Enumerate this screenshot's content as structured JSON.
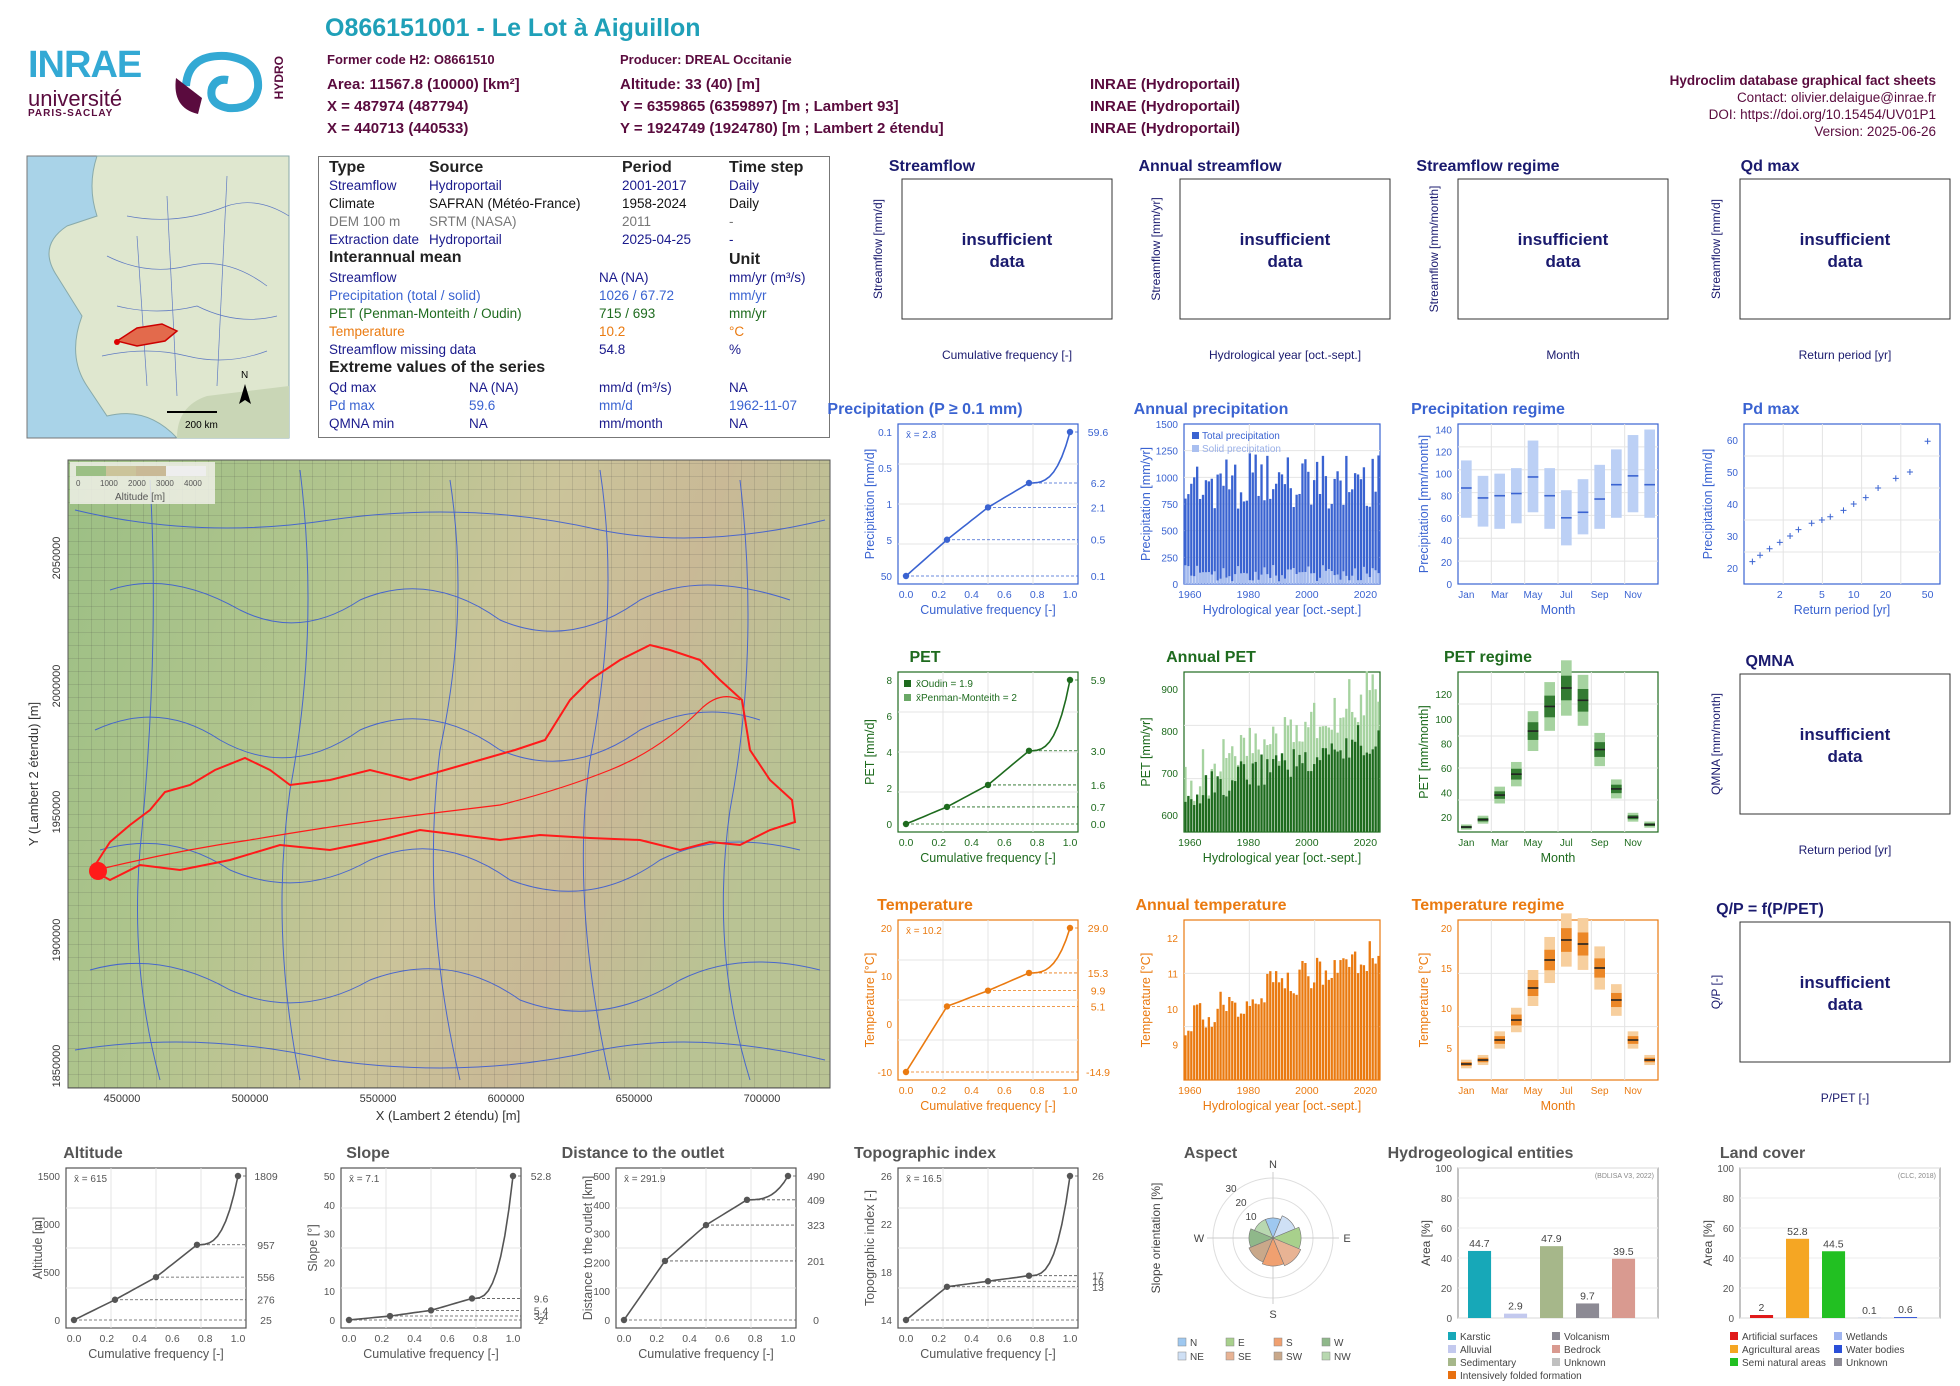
{
  "header": {
    "title": "O866151001 - Le Lot à Aiguillon",
    "former_code": "Former code H2: O8661510",
    "producer": "Producer: DREAL Occitanie",
    "area": "Area: 11567.8 (10000) [km²]",
    "altitude": "Altitude: 33 (40) [m]",
    "x_l93": "X = 487974 (487794)",
    "y_l93": "Y = 6359865 (6359897) [m ; Lambert 93]",
    "x_l2": "X = 440713 (440533)",
    "y_l2": "Y = 1924749 (1924780) [m ; Lambert 2 étendu]",
    "source_1": "INRAE (Hydroportail)",
    "source_2": "INRAE (Hydroportail)",
    "source_3": "INRAE (Hydroportail)"
  },
  "right_info": {
    "database": "Hydroclim database graphical fact sheets",
    "contact": "Contact: olivier.delaigue@inrae.fr",
    "doi": "DOI: https://doi.org/10.15454/UV01P1",
    "version": "Version: 2025-06-26"
  },
  "logo": {
    "inrae": "INRAE",
    "universite": "université",
    "paris_saclay": "PARIS-SACLAY",
    "hydro": "HYDRO"
  },
  "minimap": {
    "scale": "200 km",
    "north": "N"
  },
  "info_table": {
    "headers": [
      "Type",
      "Source",
      "Period",
      "Time step"
    ],
    "rows": [
      {
        "type": "Streamflow",
        "source": "Hydroportail",
        "period": "2001-2017",
        "step": "Daily",
        "color": "#1a1a8c"
      },
      {
        "type": "Climate",
        "source": "SAFRAN (Météo-France)",
        "period": "1958-2024",
        "step": "Daily",
        "color": "#111111"
      },
      {
        "type": "DEM 100 m",
        "source": "SRTM (NASA)",
        "period": "2011",
        "step": "-",
        "color": "#777777"
      },
      {
        "type": "Extraction date",
        "source": "Hydroportail",
        "period": "2025-04-25",
        "step": "-",
        "color": "#1a1a8c"
      }
    ],
    "mean_header": "Interannual mean",
    "unit_header": "Unit",
    "means": [
      {
        "name": "Streamflow",
        "value": "NA (NA)",
        "unit": "mm/yr (m³/s)",
        "color": "#1a1a8c"
      },
      {
        "name": "Precipitation (total / solid)",
        "value": "1026 / 67.72",
        "unit": "mm/yr",
        "color": "#3a63d1"
      },
      {
        "name": "PET (Penman-Monteith / Oudin)",
        "value": "715 / 693",
        "unit": "mm/yr",
        "color": "#1e6b1e"
      },
      {
        "name": "Temperature",
        "value": "10.2",
        "unit": "°C",
        "color": "#ea7a10"
      },
      {
        "name": "Streamflow missing data",
        "value": "54.8",
        "unit": "%",
        "color": "#1a1a8c"
      }
    ],
    "extreme_header": "Extreme values of the series",
    "extremes": [
      {
        "name": "Qd max",
        "v1": "NA (NA)",
        "unit": "mm/d (m³/s)",
        "date": "NA",
        "color": "#1a1a8c"
      },
      {
        "name": "Pd max",
        "v1": "59.6",
        "unit": "mm/d",
        "date": "1962-11-07",
        "color": "#3a63d1"
      },
      {
        "name": "QMNA min",
        "v1": "NA",
        "unit": "mm/month",
        "date": "NA",
        "color": "#1a1a8c"
      }
    ]
  },
  "map": {
    "x_label": "X (Lambert 2 étendu) [m]",
    "y_label": "Y (Lambert 2 étendu) [m]",
    "x_ticks": [
      "450000",
      "500000",
      "550000",
      "600000",
      "650000",
      "700000"
    ],
    "y_ticks": [
      "2050000",
      "2000000",
      "1950000",
      "1900000",
      "1850000"
    ],
    "legend_title": "Altitude [m]",
    "legend_ticks": [
      "0",
      "1000",
      "2000",
      "3000",
      "4000"
    ]
  },
  "insufficient_text": [
    "insufficient",
    "data"
  ],
  "panels": {
    "streamflow": {
      "title": "Streamflow",
      "ylabel": "Streamflow [mm/d]",
      "xlabel": "Cumulative frequency [-]"
    },
    "annual_streamflow": {
      "title": "Annual streamflow",
      "ylabel": "Streamflow [mm/yr]",
      "xlabel": "Hydrological year [oct.-sept.]"
    },
    "streamflow_regime": {
      "title": "Streamflow regime",
      "ylabel": "Streamflow [mm/month]",
      "xlabel": "Month"
    },
    "qd_max": {
      "title": "Qd max",
      "ylabel": "Streamflow [mm/d]",
      "xlabel": "Return period [yr]"
    },
    "precipitation": {
      "title": "Precipitation (P ≥ 0.1 mm)",
      "ylabel": "Precipitation [mm/d]",
      "xlabel": "Cumulative frequency [-]",
      "mean": "x̄ = 2.8"
    },
    "annual_precipitation": {
      "title": "Annual precipitation",
      "ylabel": "Precipitation [mm/yr]",
      "xlabel": "Hydrological year [oct.-sept.]",
      "legend": [
        "Total precipitation",
        "Solid precipitation"
      ]
    },
    "precipitation_regime": {
      "title": "Precipitation regime",
      "ylabel": "Precipitation [mm/month]",
      "xlabel": "Month"
    },
    "pd_max": {
      "title": "Pd max",
      "ylabel": "Precipitation [mm/d]",
      "xlabel": "Return period [yr]"
    },
    "pet": {
      "title": "PET",
      "ylabel": "PET [mm/d]",
      "xlabel": "Cumulative frequency [-]",
      "legend": [
        "x̄Oudin = 1.9",
        "x̄Penman-Monteith = 2"
      ]
    },
    "annual_pet": {
      "title": "Annual PET",
      "ylabel": "PET [mm/yr]",
      "xlabel": "Hydrological year [oct.-sept.]"
    },
    "pet_regime": {
      "title": "PET regime",
      "ylabel": "PET [mm/month]",
      "xlabel": "Month"
    },
    "qmna": {
      "title": "QMNA",
      "ylabel": "QMNA [mm/month]",
      "xlabel": "Return period [yr]"
    },
    "temperature": {
      "title": "Temperature",
      "ylabel": "Temperature [°C]",
      "xlabel": "Cumulative frequency [-]",
      "mean": "x̄ = 10.2"
    },
    "annual_temperature": {
      "title": "Annual temperature",
      "ylabel": "Temperature [°C]",
      "xlabel": "Hydrological year [oct.-sept.]"
    },
    "temperature_regime": {
      "title": "Temperature regime",
      "ylabel": "Temperature [°C]",
      "xlabel": "Month"
    },
    "qp": {
      "title": "Q/P = f(P/PET)",
      "ylabel": "Q/P [-]",
      "xlabel": "P/PET [-]"
    },
    "altitude": {
      "title": "Altitude",
      "ylabel": "Altitude [m]",
      "xlabel": "Cumulative frequency [-]",
      "mean": "x̄ = 615"
    },
    "slope": {
      "title": "Slope",
      "ylabel": "Slope [°]",
      "xlabel": "Cumulative frequency [-]",
      "mean": "x̄ = 7.1"
    },
    "distance": {
      "title": "Distance to the outlet",
      "ylabel": "Distance to the outlet [km]",
      "xlabel": "Cumulative frequency [-]",
      "mean": "x̄ = 291.9"
    },
    "topo": {
      "title": "Topographic index",
      "ylabel": "Topographic index [-]",
      "xlabel": "Cumulative frequency [-]",
      "mean": "x̄ = 16.5"
    },
    "aspect": {
      "title": "Aspect",
      "ylabel": "Slope orientation [%]",
      "legend": [
        "N",
        "E",
        "S",
        "W",
        "NE",
        "SE",
        "SW",
        "NW"
      ]
    },
    "hydrogeo": {
      "title": "Hydrogeological entities",
      "ylabel": "Area [%]",
      "source": "(BDLISA V3, 2022)",
      "legend": [
        "Karstic",
        "Volcanism",
        "Alluvial",
        "Bedrock",
        "Sedimentary",
        "Unknown",
        "Intensively folded formation"
      ]
    },
    "landcover": {
      "title": "Land cover",
      "ylabel": "Area [%]",
      "source": "(CLC, 2018)",
      "legend": [
        "Artificial surfaces",
        "Wetlands",
        "Agricultural areas",
        "Water bodies",
        "Semi natural areas",
        "Unknown"
      ]
    }
  },
  "chart_data": [
    {
      "id": "precipitation",
      "type": "line",
      "x": [
        0,
        0.25,
        0.5,
        0.75,
        1
      ],
      "y": [
        0.1,
        0.5,
        2.1,
        6.2,
        59.6
      ],
      "right_ticks": [
        "59.6",
        "6.2",
        "2.1",
        "0.5",
        "0.1"
      ],
      "yticks": [
        "50",
        "5",
        "1",
        "0.5",
        "0.1"
      ],
      "xticks": [
        "0.0",
        "0.2",
        "0.4",
        "0.6",
        "0.8",
        "1.0"
      ],
      "color": "#3a63d1"
    },
    {
      "id": "annual_precipitation",
      "type": "bar",
      "xlim": [
        1958,
        2024
      ],
      "ylim": [
        0,
        1500
      ],
      "xticks": [
        "1960",
        "1980",
        "2000",
        "2020"
      ],
      "yticks": [
        "0",
        "250",
        "500",
        "750",
        "1000",
        "1250",
        "1500"
      ],
      "series": [
        {
          "name": "Total precipitation",
          "color": "#3a63d1"
        },
        {
          "name": "Solid precipitation",
          "color": "#a9bff0"
        }
      ]
    },
    {
      "id": "precipitation_regime",
      "type": "bar",
      "categories": [
        "Jan",
        "Feb",
        "Mar",
        "Apr",
        "May",
        "Jun",
        "Jul",
        "Aug",
        "Sep",
        "Oct",
        "Nov",
        "Dec"
      ],
      "xticks": [
        "Jan",
        "Mar",
        "May",
        "Jul",
        "Sep",
        "Nov"
      ],
      "yticks": [
        "0",
        "20",
        "40",
        "60",
        "80",
        "100",
        "120",
        "140"
      ],
      "ylim": [
        0,
        145
      ],
      "medians": [
        87,
        78,
        80,
        82,
        97,
        80,
        60,
        65,
        77,
        90,
        98,
        90
      ],
      "q_low": [
        60,
        52,
        50,
        55,
        65,
        50,
        35,
        45,
        50,
        60,
        65,
        60
      ],
      "q_high": [
        112,
        98,
        100,
        105,
        130,
        105,
        85,
        95,
        108,
        122,
        135,
        140
      ],
      "color": "#3a63d1"
    },
    {
      "id": "pd_max",
      "type": "scatter",
      "xticks": [
        "2",
        "5",
        "10",
        "20",
        "50"
      ],
      "yticks": [
        "20",
        "30",
        "40",
        "50",
        "60"
      ],
      "x": [
        1.1,
        1.3,
        1.6,
        2,
        2.5,
        3,
        4,
        5,
        6,
        8,
        10,
        13,
        17,
        25,
        34,
        50
      ],
      "y": [
        22,
        24,
        26,
        28,
        30,
        32,
        34,
        35,
        36,
        38,
        40,
        42,
        45,
        48,
        50,
        59.6
      ],
      "color": "#3a63d1"
    },
    {
      "id": "pet",
      "type": "line",
      "x": [
        0,
        0.25,
        0.5,
        0.75,
        1
      ],
      "y": [
        0,
        0.7,
        1.6,
        3,
        5.9
      ],
      "right_ticks": [
        "5.9",
        "3.0",
        "1.6",
        "0.7",
        "0.0"
      ],
      "yticks": [
        "0",
        "2",
        "4",
        "6",
        "8"
      ],
      "xticks": [
        "0.0",
        "0.2",
        "0.4",
        "0.6",
        "0.8",
        "1.0"
      ],
      "color": "#1e6b1e"
    },
    {
      "id": "annual_pet",
      "type": "bar",
      "xlim": [
        1958,
        2024
      ],
      "ylim": [
        560,
        940
      ],
      "xticks": [
        "1960",
        "1980",
        "2000",
        "2020"
      ],
      "yticks": [
        "600",
        "700",
        "800",
        "900"
      ],
      "series": [
        {
          "name": "Oudin",
          "color": "#1e6b1e"
        },
        {
          "name": "Penman-Monteith",
          "color": "#a6d3a0"
        }
      ]
    },
    {
      "id": "pet_regime",
      "type": "bar",
      "categories": [
        "Jan",
        "Feb",
        "Mar",
        "Apr",
        "May",
        "Jun",
        "Jul",
        "Aug",
        "Sep",
        "Oct",
        "Nov",
        "Dec"
      ],
      "xticks": [
        "Jan",
        "Mar",
        "May",
        "Jul",
        "Sep",
        "Nov"
      ],
      "yticks": [
        "20",
        "40",
        "60",
        "80",
        "100",
        "120"
      ],
      "ylim": [
        8,
        138
      ],
      "medians": [
        12,
        18,
        38,
        55,
        90,
        110,
        125,
        115,
        75,
        43,
        20,
        14
      ],
      "color": "#1e6b1e"
    },
    {
      "id": "temperature",
      "type": "line",
      "x": [
        0,
        0.25,
        0.5,
        0.75,
        1
      ],
      "y": [
        -14.9,
        5.1,
        9.9,
        15.3,
        29
      ],
      "right_ticks": [
        "29.0",
        "15.3",
        "9.9",
        "5.1",
        "-14.9"
      ],
      "yticks": [
        "-10",
        "0",
        "10",
        "20"
      ],
      "xticks": [
        "0.0",
        "0.2",
        "0.4",
        "0.6",
        "0.8",
        "1.0"
      ],
      "color": "#ea7a10"
    },
    {
      "id": "annual_temperature",
      "type": "bar",
      "xlim": [
        1958,
        2024
      ],
      "ylim": [
        8,
        12.5
      ],
      "xticks": [
        "1960",
        "1980",
        "2000",
        "2020"
      ],
      "yticks": [
        "9",
        "10",
        "11",
        "12"
      ],
      "color": "#ea7a10"
    },
    {
      "id": "temperature_regime",
      "type": "bar",
      "categories": [
        "Jan",
        "Feb",
        "Mar",
        "Apr",
        "May",
        "Jun",
        "Jul",
        "Aug",
        "Sep",
        "Oct",
        "Nov",
        "Dec"
      ],
      "xticks": [
        "Jan",
        "Mar",
        "May",
        "Jul",
        "Sep",
        "Nov"
      ],
      "yticks": [
        "5",
        "10",
        "15",
        "20"
      ],
      "ylim": [
        1,
        21
      ],
      "medians": [
        3,
        3.5,
        6,
        8.5,
        12.5,
        16,
        18.5,
        18,
        15,
        11,
        6,
        3.5
      ],
      "color": "#ea7a10"
    },
    {
      "id": "altitude",
      "type": "line",
      "x": [
        0,
        0.25,
        0.5,
        0.75,
        1
      ],
      "y": [
        25,
        276,
        556,
        957,
        1809
      ],
      "right_ticks": [
        "1809",
        "957",
        "556",
        "276",
        "25"
      ],
      "yticks": [
        "0",
        "500",
        "1000",
        "1500"
      ],
      "xticks": [
        "0.0",
        "0.2",
        "0.4",
        "0.6",
        "0.8",
        "1.0"
      ],
      "color": "#555555"
    },
    {
      "id": "slope",
      "type": "line",
      "x": [
        0,
        0.25,
        0.5,
        0.75,
        1
      ],
      "y": [
        2,
        3.4,
        5.4,
        9.6,
        52.8
      ],
      "right_ticks": [
        "52.8",
        "9.6",
        "5.4",
        "3.4",
        "2"
      ],
      "yticks": [
        "0",
        "10",
        "20",
        "30",
        "40",
        "50"
      ],
      "xticks": [
        "0.0",
        "0.2",
        "0.4",
        "0.6",
        "0.8",
        "1.0"
      ],
      "color": "#555555"
    },
    {
      "id": "distance",
      "type": "line",
      "x": [
        0,
        0.25,
        0.5,
        0.75,
        1
      ],
      "y": [
        0,
        201,
        323,
        409,
        490
      ],
      "right_ticks": [
        "490",
        "409",
        "323",
        "201",
        "0"
      ],
      "yticks": [
        "0",
        "100",
        "200",
        "300",
        "400",
        "500"
      ],
      "xticks": [
        "0.0",
        "0.2",
        "0.4",
        "0.6",
        "0.8",
        "1.0"
      ],
      "color": "#555555"
    },
    {
      "id": "topo",
      "type": "line",
      "x": [
        0,
        0.25,
        0.5,
        0.75,
        1
      ],
      "y": [
        13,
        16,
        16.5,
        17,
        26
      ],
      "right_ticks": [
        "26",
        "17",
        "16",
        "13"
      ],
      "yticks": [
        "14",
        "18",
        "22",
        "26"
      ],
      "xticks": [
        "0.0",
        "0.2",
        "0.4",
        "0.6",
        "0.8",
        "1.0"
      ],
      "color": "#555555"
    },
    {
      "id": "aspect",
      "type": "pie",
      "categories": [
        "N",
        "NE",
        "E",
        "SE",
        "S",
        "SW",
        "W",
        "NW"
      ],
      "values": [
        10,
        12,
        14,
        15,
        14,
        13,
        12,
        10
      ],
      "rticks": [
        "10",
        "20",
        "30"
      ]
    },
    {
      "id": "hydrogeo",
      "type": "bar",
      "categories": [
        "Karstic",
        "Alluvial",
        "Sedimentary",
        "Volcanism",
        "Bedrock"
      ],
      "values": [
        44.7,
        2.9,
        47.9,
        9.7,
        39.5
      ],
      "labels": [
        "44.7",
        "2.9",
        "47.9",
        "9.7",
        "39.5"
      ],
      "colors": [
        "#17a8b8",
        "#c3c9ee",
        "#a6b78a",
        "#8c8a94",
        "#d99a90"
      ],
      "yticks": [
        "0",
        "20",
        "40",
        "60",
        "80",
        "100"
      ],
      "ylim": [
        0,
        100
      ]
    },
    {
      "id": "landcover",
      "type": "bar",
      "categories": [
        "Artificial surfaces",
        "Agricultural areas",
        "Semi natural areas",
        "Wetlands",
        "Water bodies"
      ],
      "values": [
        2,
        52.8,
        44.5,
        0.1,
        0.6
      ],
      "labels": [
        "2",
        "52.8",
        "44.5",
        "0.1",
        "0.6"
      ],
      "colors": [
        "#e01a1a",
        "#f5a623",
        "#22c022",
        "#9fb4f0",
        "#2a4fd8"
      ],
      "yticks": [
        "0",
        "20",
        "40",
        "60",
        "80",
        "100"
      ],
      "ylim": [
        0,
        100
      ]
    }
  ]
}
